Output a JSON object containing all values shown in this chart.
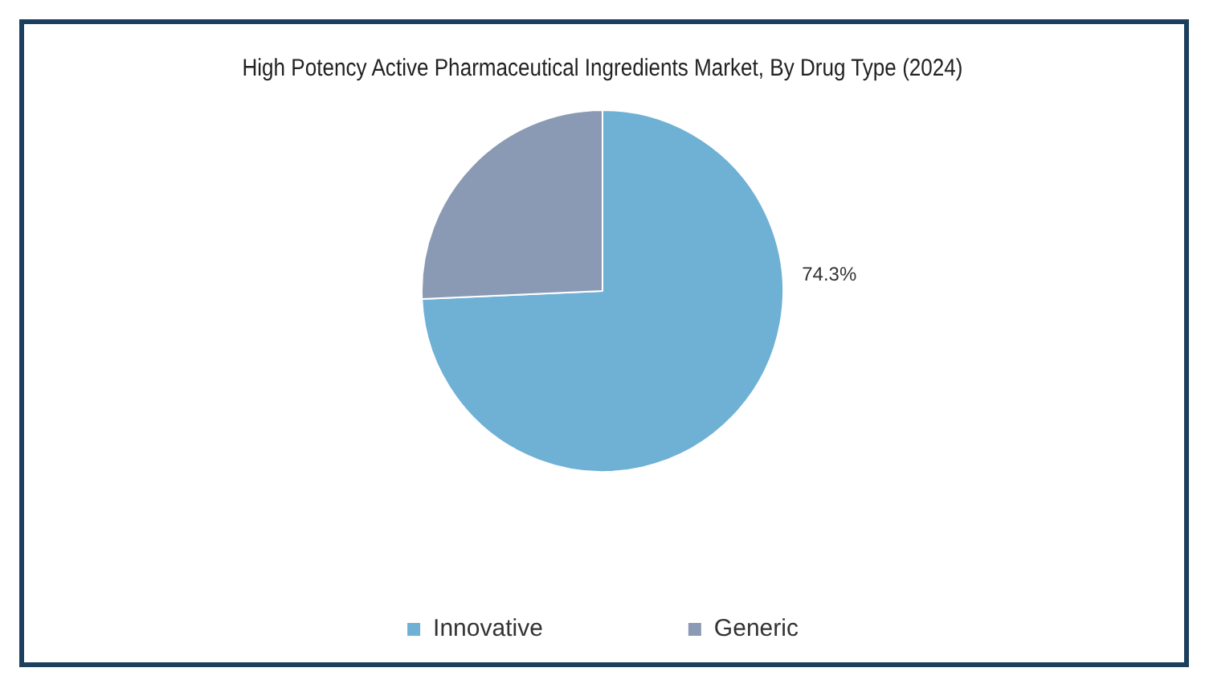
{
  "chart_data": {
    "type": "pie",
    "title": "High Potency Active Pharmaceutical Ingredients Market, By Drug Type (2024)",
    "categories": [
      "Innovative",
      "Generic"
    ],
    "values": [
      74.3,
      25.7
    ],
    "colors": [
      "#6fb0d5",
      "#8a9ab4"
    ],
    "value_labels": [
      "74.3%",
      null
    ],
    "legend": "bottom"
  }
}
